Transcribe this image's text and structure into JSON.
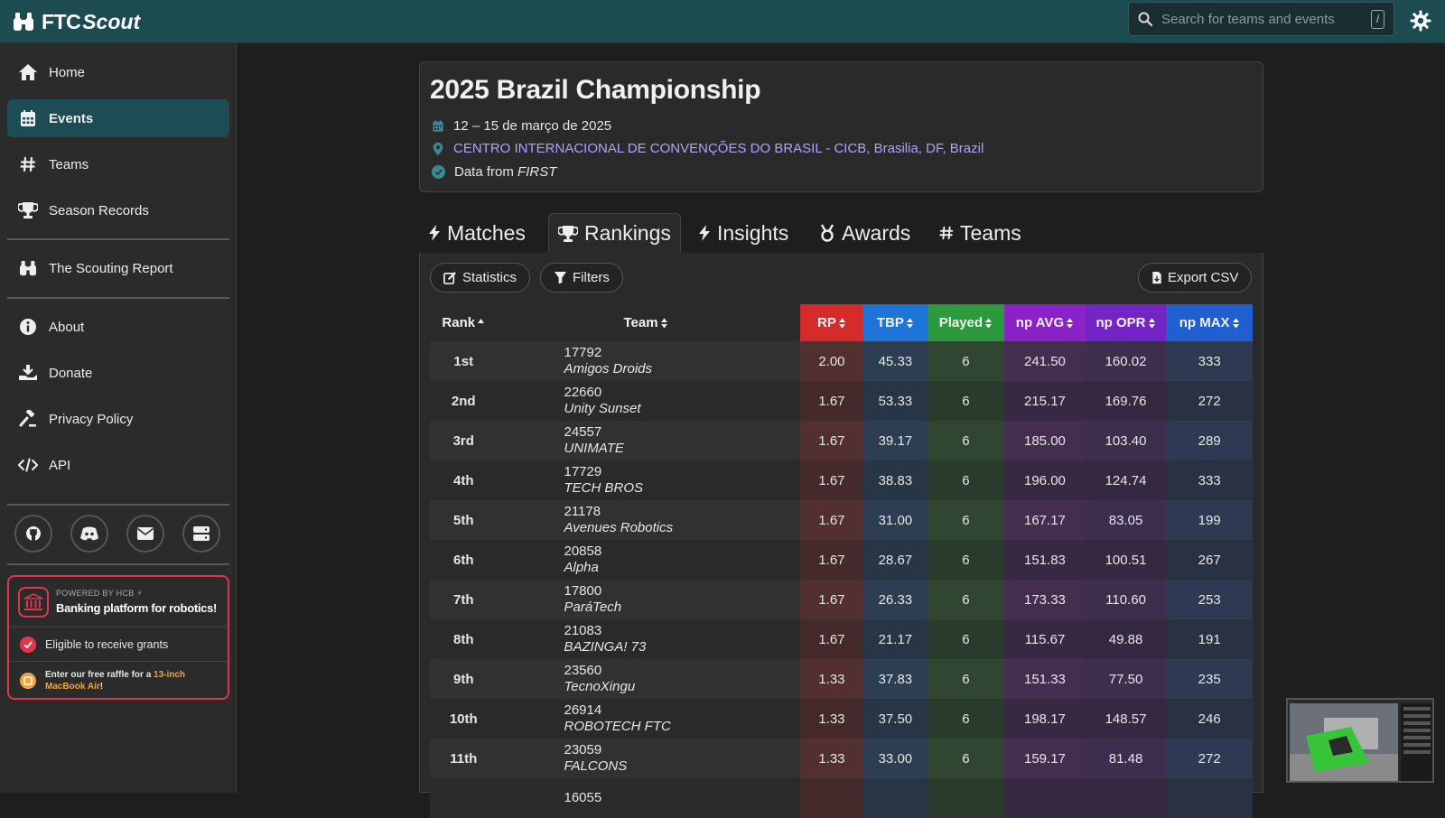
{
  "brand": {
    "ftc": "FTC",
    "scout": "Scout"
  },
  "search": {
    "placeholder": "Search for teams and events",
    "shortcut": "/"
  },
  "sidebar": {
    "items": [
      {
        "label": "Home",
        "icon": "home-icon"
      },
      {
        "label": "Events",
        "icon": "calendar-icon",
        "active": true
      },
      {
        "label": "Teams",
        "icon": "hash-icon"
      },
      {
        "label": "Season Records",
        "icon": "trophy-icon"
      },
      {
        "label": "The Scouting Report",
        "icon": "binoculars-icon"
      },
      {
        "label": "About",
        "icon": "info-icon"
      },
      {
        "label": "Donate",
        "icon": "donate-icon"
      },
      {
        "label": "Privacy Policy",
        "icon": "gavel-icon"
      },
      {
        "label": "API",
        "icon": "code-icon"
      }
    ],
    "social": [
      "github-icon",
      "discord-icon",
      "mail-icon",
      "server-icon"
    ]
  },
  "hcb": {
    "powered": "POWERED BY HCB ⚡",
    "tagline": "Banking platform for robotics!",
    "eligible": "Eligible to receive grants",
    "raffle_pre": "Enter our free raffle for a ",
    "raffle_hl1": "13-inch",
    "raffle_hl2": "MacBook Air",
    "raffle_post": "!"
  },
  "event": {
    "title": "2025 Brazil Championship",
    "dates": "12 – 15 de março de 2025",
    "location": "CENTRO INTERNACIONAL DE CONVENÇÕES DO BRASIL - CICB, Brasilia, DF, Brazil",
    "data_from_pre": "Data from ",
    "data_from_src": "FIRST"
  },
  "tabs": [
    {
      "label": "Matches",
      "icon": "bolt-icon"
    },
    {
      "label": "Rankings",
      "icon": "trophy-icon",
      "active": true
    },
    {
      "label": "Insights",
      "icon": "bolt-icon"
    },
    {
      "label": "Awards",
      "icon": "medal-icon"
    },
    {
      "label": "Teams",
      "icon": "hash-icon"
    }
  ],
  "toolbar": {
    "statistics": "Statistics",
    "filters": "Filters",
    "export": "Export CSV"
  },
  "columns": {
    "rank": "Rank",
    "team": "Team",
    "rp": {
      "label": "RP",
      "color": "#d62b2b"
    },
    "tbp": {
      "label": "TBP",
      "color": "#1f74d8"
    },
    "played": {
      "label": "Played",
      "color": "#2a9a3c"
    },
    "npavg": {
      "label": "np AVG",
      "color": "#8a22c8"
    },
    "npopr": {
      "label": "np OPR",
      "color": "#7424c4"
    },
    "npmax": {
      "label": "np MAX",
      "color": "#1f5fd0"
    }
  },
  "rows": [
    {
      "rank": "1st",
      "number": "17792",
      "name": "Amigos Droids",
      "rp": "2.00",
      "tbp": "45.33",
      "played": "6",
      "npavg": "241.50",
      "npopr": "160.02",
      "npmax": "333"
    },
    {
      "rank": "2nd",
      "number": "22660",
      "name": "Unity Sunset",
      "rp": "1.67",
      "tbp": "53.33",
      "played": "6",
      "npavg": "215.17",
      "npopr": "169.76",
      "npmax": "272"
    },
    {
      "rank": "3rd",
      "number": "24557",
      "name": "UNIMATE",
      "rp": "1.67",
      "tbp": "39.17",
      "played": "6",
      "npavg": "185.00",
      "npopr": "103.40",
      "npmax": "289"
    },
    {
      "rank": "4th",
      "number": "17729",
      "name": "TECH BROS",
      "rp": "1.67",
      "tbp": "38.83",
      "played": "6",
      "npavg": "196.00",
      "npopr": "124.74",
      "npmax": "333"
    },
    {
      "rank": "5th",
      "number": "21178",
      "name": "Avenues Robotics",
      "rp": "1.67",
      "tbp": "31.00",
      "played": "6",
      "npavg": "167.17",
      "npopr": "83.05",
      "npmax": "199"
    },
    {
      "rank": "6th",
      "number": "20858",
      "name": "Alpha",
      "rp": "1.67",
      "tbp": "28.67",
      "played": "6",
      "npavg": "151.83",
      "npopr": "100.51",
      "npmax": "267"
    },
    {
      "rank": "7th",
      "number": "17800",
      "name": "ParáTech",
      "rp": "1.67",
      "tbp": "26.33",
      "played": "6",
      "npavg": "173.33",
      "npopr": "110.60",
      "npmax": "253"
    },
    {
      "rank": "8th",
      "number": "21083",
      "name": "BAZINGA! 73",
      "rp": "1.67",
      "tbp": "21.17",
      "played": "6",
      "npavg": "115.67",
      "npopr": "49.88",
      "npmax": "191"
    },
    {
      "rank": "9th",
      "number": "23560",
      "name": "TecnoXingu",
      "rp": "1.33",
      "tbp": "37.83",
      "played": "6",
      "npavg": "151.33",
      "npopr": "77.50",
      "npmax": "235"
    },
    {
      "rank": "10th",
      "number": "26914",
      "name": "ROBOTECH FTC",
      "rp": "1.33",
      "tbp": "37.50",
      "played": "6",
      "npavg": "198.17",
      "npopr": "148.57",
      "npmax": "246"
    },
    {
      "rank": "11th",
      "number": "23059",
      "name": "FALCONS",
      "rp": "1.33",
      "tbp": "33.00",
      "played": "6",
      "npavg": "159.17",
      "npopr": "81.48",
      "npmax": "272"
    },
    {
      "rank": "",
      "number": "16055",
      "name": "",
      "rp": "",
      "tbp": "",
      "played": "",
      "npavg": "",
      "npopr": "",
      "npmax": ""
    }
  ]
}
